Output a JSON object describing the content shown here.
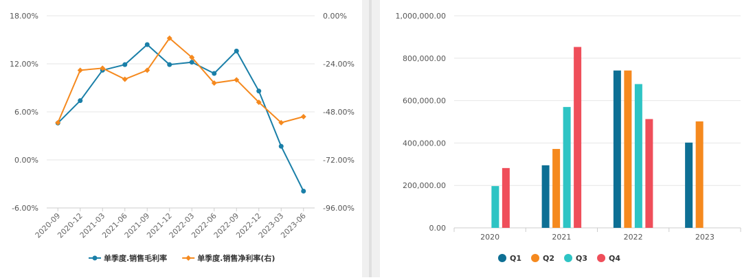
{
  "chart_data": [
    {
      "type": "line",
      "x": [
        "2020-09",
        "2020-12",
        "2021-03",
        "2021-06",
        "2021-09",
        "2021-12",
        "2022-03",
        "2022-06",
        "2022-09",
        "2022-12",
        "2023-03",
        "2023-06"
      ],
      "y_left_ticks": [
        "18.00%",
        "12.00%",
        "6.00%",
        "0.00%",
        "-6.00%"
      ],
      "y_right_ticks": [
        "0.00%",
        "-24.00%",
        "-48.00%",
        "-72.00%",
        "-96.00%"
      ],
      "ylim_left": [
        -6,
        18
      ],
      "ylim_right": [
        -96,
        0
      ],
      "series": [
        {
          "name": "单季度.销售毛利率",
          "axis": "left",
          "color": "#1a7fa8",
          "values": [
            4.6,
            7.4,
            11.2,
            11.9,
            14.4,
            11.9,
            12.2,
            10.8,
            13.6,
            8.6,
            1.7,
            -3.9
          ]
        },
        {
          "name": "单季度.销售净利率(右)",
          "axis": "right",
          "color": "#f5891e",
          "values": [
            -53.4,
            -27.2,
            -26.2,
            -31.7,
            -27.2,
            -11.2,
            -20.8,
            -33.6,
            -32.0,
            -43.2,
            -53.4,
            -50.4
          ]
        }
      ],
      "legend_position": "bottom"
    },
    {
      "type": "bar",
      "categories": [
        "2020",
        "2021",
        "2022",
        "2023"
      ],
      "y_ticks": [
        "1,000,000.00",
        "800,000.00",
        "600,000.00",
        "400,000.00",
        "200,000.00",
        "0.00"
      ],
      "ylim": [
        0,
        1000000
      ],
      "series": [
        {
          "name": "Q1",
          "color": "#0d6f94",
          "values": [
            null,
            295000,
            742000,
            402000
          ]
        },
        {
          "name": "Q2",
          "color": "#f5891e",
          "values": [
            null,
            372000,
            742000,
            502000
          ]
        },
        {
          "name": "Q3",
          "color": "#2ec4c4",
          "values": [
            197000,
            570000,
            678000,
            null
          ]
        },
        {
          "name": "Q4",
          "color": "#ef4e5a",
          "values": [
            282000,
            853000,
            513000,
            null
          ]
        }
      ],
      "legend_position": "bottom"
    }
  ]
}
